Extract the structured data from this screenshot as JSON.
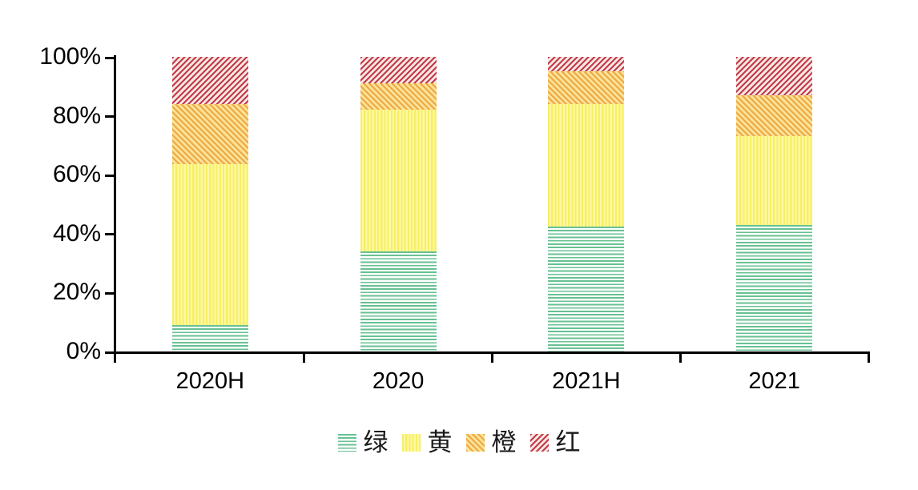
{
  "chart_data": {
    "type": "bar",
    "stacked": true,
    "orientation": "vertical",
    "title": "",
    "xlabel": "",
    "ylabel": "",
    "categories": [
      "2020H",
      "2020",
      "2021H",
      "2021"
    ],
    "series": [
      {
        "name": "绿",
        "key": "green",
        "color": "#67c192",
        "pattern": "horizontal-lines",
        "values": [
          9,
          34,
          42.5,
          43
        ]
      },
      {
        "name": "黄",
        "key": "yellow",
        "color": "#f7ee66",
        "pattern": "vertical-lines",
        "values": [
          54.5,
          48,
          41.5,
          30
        ]
      },
      {
        "name": "橙",
        "key": "orange",
        "color": "#efa843",
        "pattern": "diagonal-down-hatch",
        "values": [
          20.5,
          9,
          11,
          14
        ]
      },
      {
        "name": "红",
        "key": "red",
        "color": "#c23b49",
        "pattern": "diagonal-up-hatch",
        "values": [
          16,
          9,
          5,
          13
        ]
      }
    ],
    "y_ticks": [
      "0%",
      "20%",
      "40%",
      "60%",
      "80%",
      "100%"
    ],
    "ylim": [
      0,
      100
    ],
    "grid": false,
    "legend_position": "bottom",
    "axis_color": "#000000"
  }
}
